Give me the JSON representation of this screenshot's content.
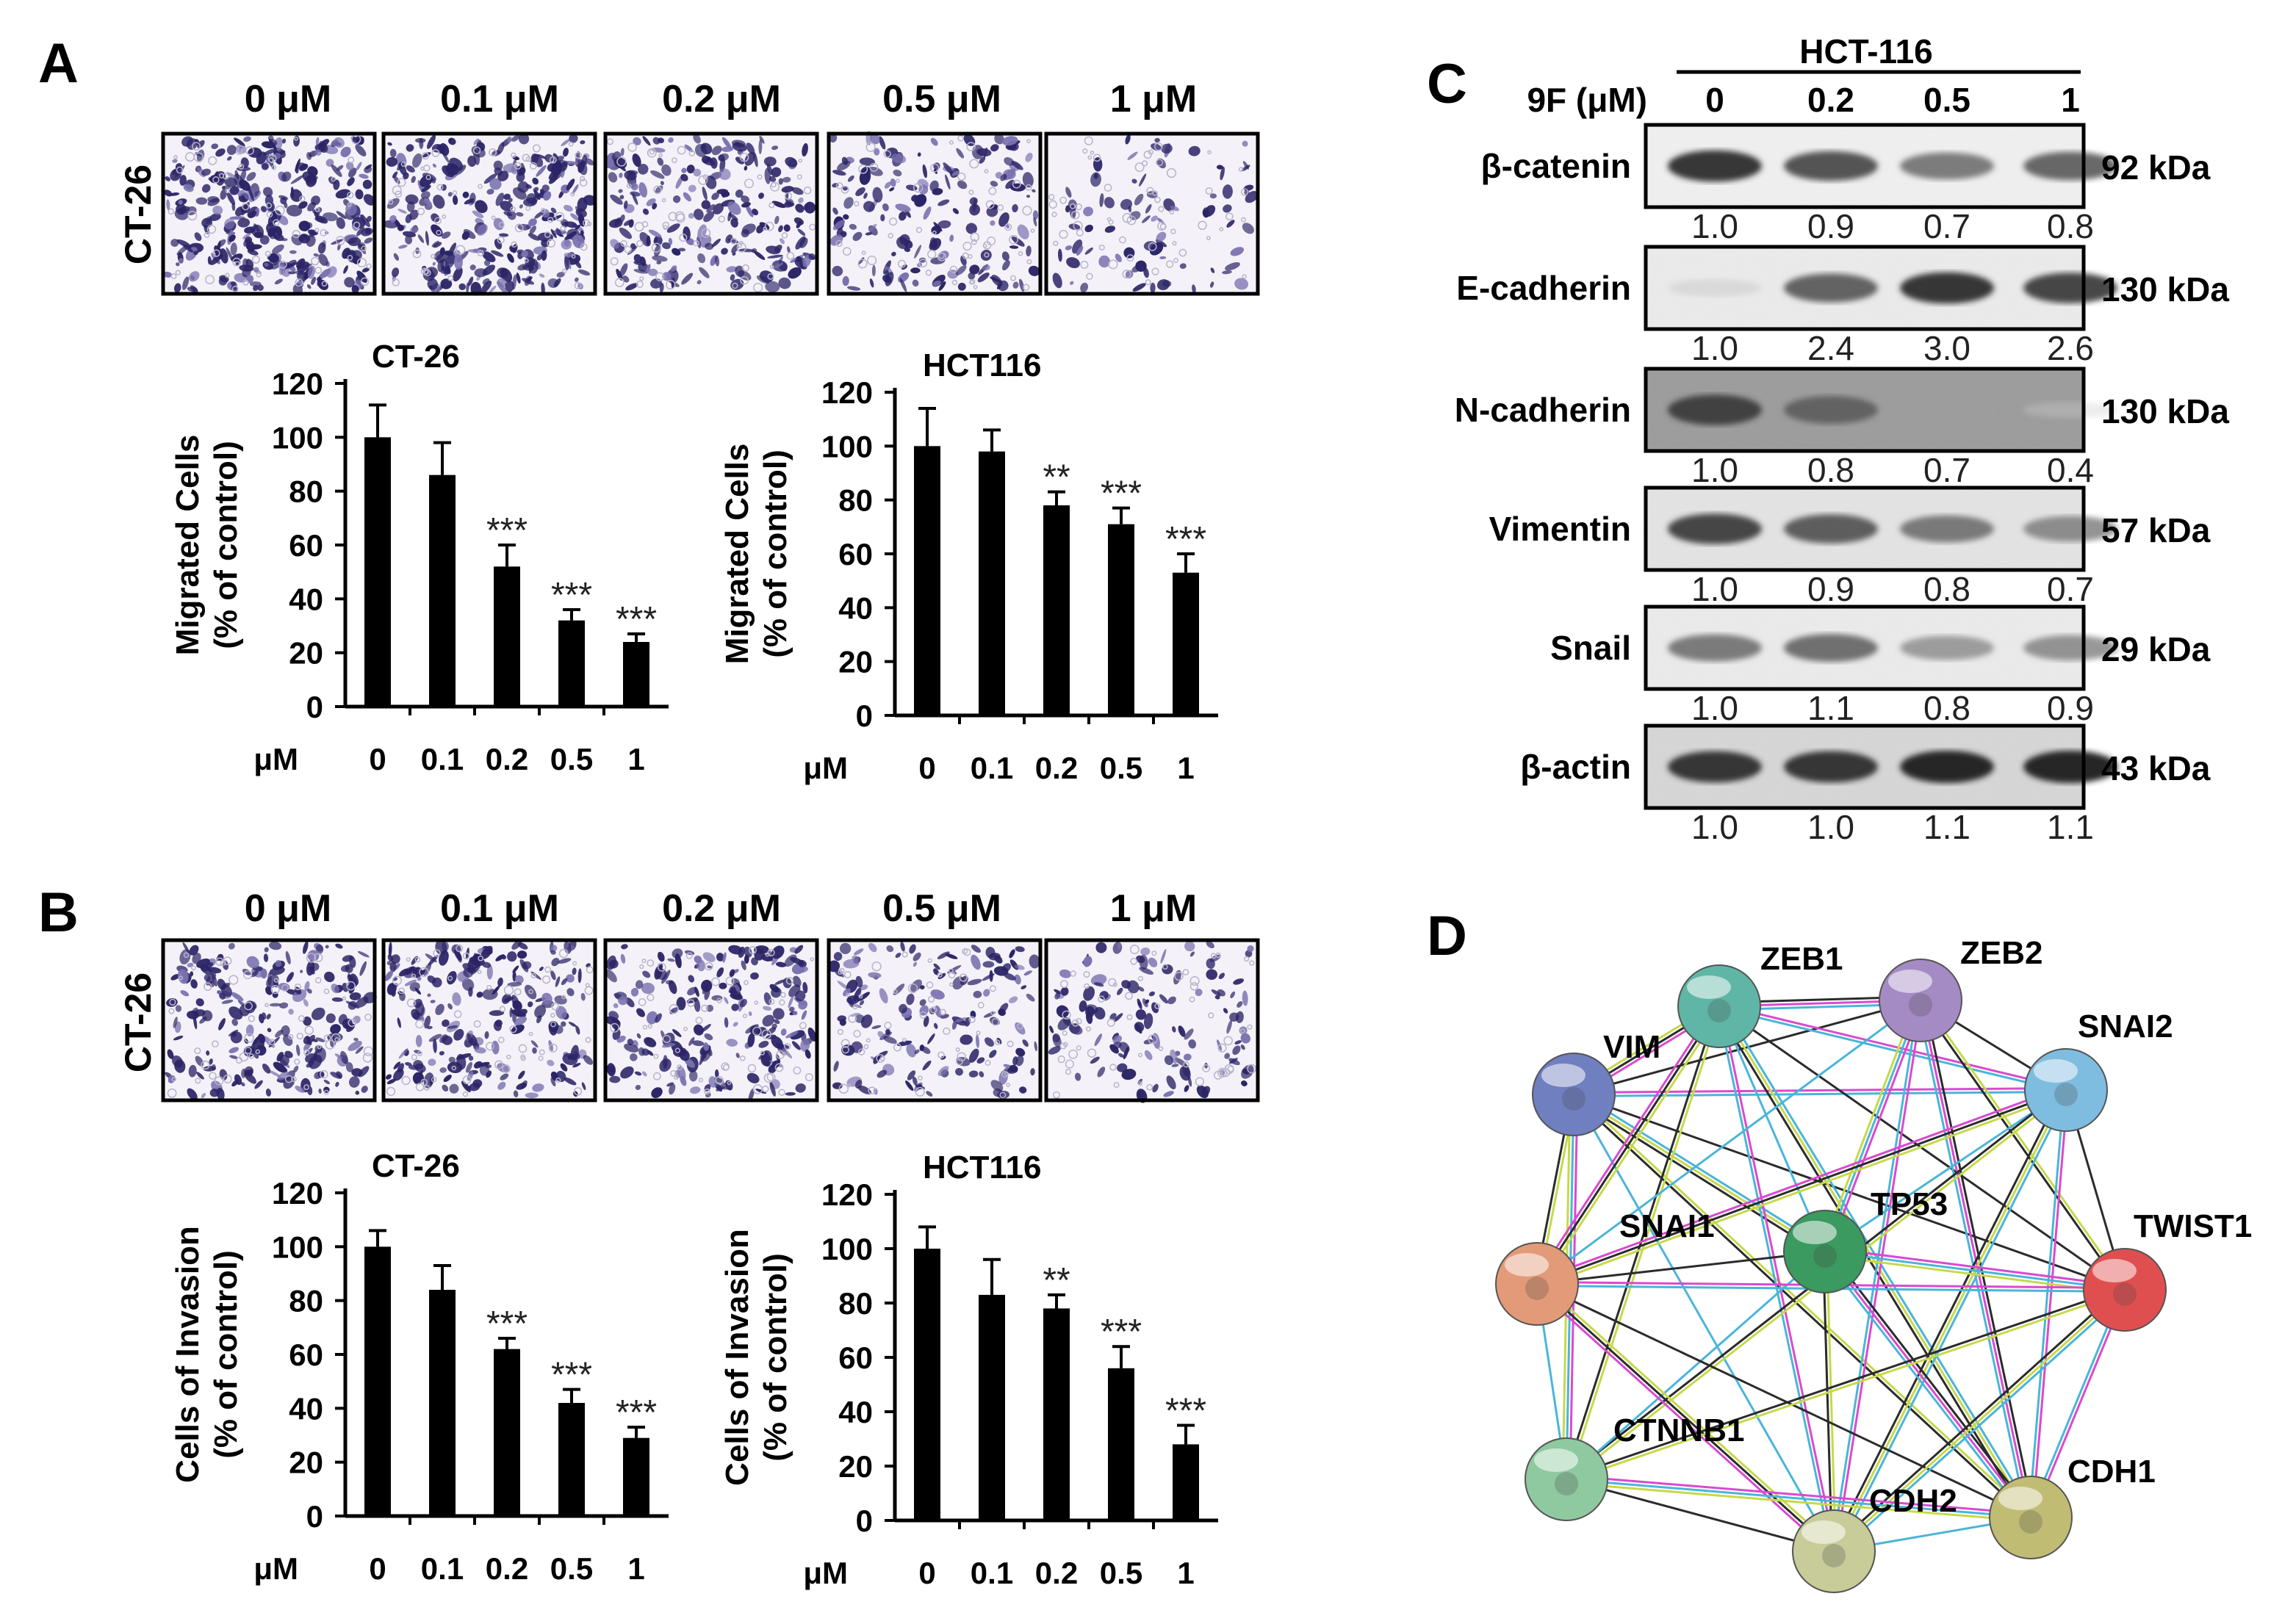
{
  "panels": {
    "A": {
      "letter": "A",
      "micro_conc": [
        "0 μM",
        "0.1 μM",
        "0.2 μM",
        "0.5 μM",
        "1 μM"
      ],
      "micro_density": [
        0.62,
        0.55,
        0.42,
        0.32,
        0.16
      ],
      "micro_row_label": "CT-26"
    },
    "B": {
      "letter": "B",
      "micro_conc": [
        "0 μM",
        "0.1 μM",
        "0.2 μM",
        "0.5 μM",
        "1 μM"
      ],
      "micro_density": [
        0.44,
        0.42,
        0.4,
        0.3,
        0.25
      ],
      "micro_row_label": "CT-26"
    },
    "C": {
      "letter": "C",
      "cell_line": "HCT-116",
      "treatment_label": "9F (μM)",
      "lanes": [
        "0",
        "0.2",
        "0.5",
        "1"
      ],
      "proteins": [
        {
          "name": "β-catenin",
          "kda": "92 kDa",
          "quant": [
            "1.0",
            "0.9",
            "0.7",
            "0.8"
          ],
          "intensity": [
            0.95,
            0.85,
            0.7,
            0.78
          ],
          "bg": "#f3f3f3"
        },
        {
          "name": "E-cadherin",
          "kda": "130 kDa",
          "quant": [
            "1.0",
            "2.4",
            "3.0",
            "2.6"
          ],
          "intensity": [
            0.15,
            0.8,
            0.95,
            0.9
          ],
          "bg": "#eeeeee"
        },
        {
          "name": "N-cadherin",
          "kda": "130 kDa",
          "quant": [
            "1.0",
            "0.8",
            "0.7",
            "0.4"
          ],
          "intensity": [
            0.9,
            0.75,
            0.35,
            0.08
          ],
          "bg": "#9a9a9a"
        },
        {
          "name": "Vimentin",
          "kda": "57 kDa",
          "quant": [
            "1.0",
            "0.9",
            "0.8",
            "0.7"
          ],
          "intensity": [
            0.9,
            0.82,
            0.7,
            0.62
          ],
          "bg": "#e6e6e6"
        },
        {
          "name": "Snail",
          "kda": "29 kDa",
          "quant": [
            "1.0",
            "1.1",
            "0.8",
            "0.9"
          ],
          "intensity": [
            0.7,
            0.75,
            0.55,
            0.6
          ],
          "bg": "#eeeeee"
        },
        {
          "name": "β-actin",
          "kda": "43 kDa",
          "quant": [
            "1.0",
            "1.0",
            "1.1",
            "1.1"
          ],
          "intensity": [
            0.95,
            0.95,
            1.0,
            1.0
          ],
          "bg": "#d8d8d8"
        }
      ]
    },
    "D": {
      "letter": "D",
      "nodes": [
        {
          "id": "ZEB1",
          "color": "#5fb6a6"
        },
        {
          "id": "ZEB2",
          "color": "#a48bc4"
        },
        {
          "id": "VIM",
          "color": "#6f7fc0"
        },
        {
          "id": "SNAI2",
          "color": "#7fbde0"
        },
        {
          "id": "TP53",
          "color": "#3a9a5f"
        },
        {
          "id": "SNAI1",
          "color": "#e29a78"
        },
        {
          "id": "TWIST1",
          "color": "#e04f4f"
        },
        {
          "id": "CTNNB1",
          "color": "#8fc9a0"
        },
        {
          "id": "CDH2",
          "color": "#c7cc98"
        },
        {
          "id": "CDH1",
          "color": "#c1bc74"
        }
      ],
      "edges": [
        [
          "VIM",
          "ZEB1"
        ],
        [
          "VIM",
          "ZEB2"
        ],
        [
          "VIM",
          "SNAI2"
        ],
        [
          "VIM",
          "TP53"
        ],
        [
          "VIM",
          "SNAI1"
        ],
        [
          "VIM",
          "TWIST1"
        ],
        [
          "VIM",
          "CTNNB1"
        ],
        [
          "VIM",
          "CDH2"
        ],
        [
          "VIM",
          "CDH1"
        ],
        [
          "ZEB1",
          "ZEB2"
        ],
        [
          "ZEB1",
          "SNAI2"
        ],
        [
          "ZEB1",
          "TP53"
        ],
        [
          "ZEB1",
          "SNAI1"
        ],
        [
          "ZEB1",
          "TWIST1"
        ],
        [
          "ZEB1",
          "CDH2"
        ],
        [
          "ZEB1",
          "CDH1"
        ],
        [
          "ZEB1",
          "CTNNB1"
        ],
        [
          "ZEB2",
          "SNAI2"
        ],
        [
          "ZEB2",
          "TP53"
        ],
        [
          "ZEB2",
          "SNAI1"
        ],
        [
          "ZEB2",
          "TWIST1"
        ],
        [
          "ZEB2",
          "CDH1"
        ],
        [
          "ZEB2",
          "CDH2"
        ],
        [
          "SNAI2",
          "TP53"
        ],
        [
          "SNAI2",
          "SNAI1"
        ],
        [
          "SNAI2",
          "TWIST1"
        ],
        [
          "SNAI2",
          "CDH1"
        ],
        [
          "SNAI2",
          "CDH2"
        ],
        [
          "SNAI2",
          "CTNNB1"
        ],
        [
          "TP53",
          "SNAI1"
        ],
        [
          "TP53",
          "TWIST1"
        ],
        [
          "TP53",
          "CTNNB1"
        ],
        [
          "TP53",
          "CDH2"
        ],
        [
          "TP53",
          "CDH1"
        ],
        [
          "SNAI1",
          "TWIST1"
        ],
        [
          "SNAI1",
          "CTNNB1"
        ],
        [
          "SNAI1",
          "CDH2"
        ],
        [
          "SNAI1",
          "CDH1"
        ],
        [
          "TWIST1",
          "CDH1"
        ],
        [
          "TWIST1",
          "CDH2"
        ],
        [
          "TWIST1",
          "CTNNB1"
        ],
        [
          "CTNNB1",
          "CDH2"
        ],
        [
          "CTNNB1",
          "CDH1"
        ],
        [
          "CDH2",
          "CDH1"
        ]
      ]
    }
  },
  "chart_data": [
    {
      "type": "bar",
      "panel": "A",
      "title": "CT-26",
      "ylabel": [
        "Migrated Cells",
        "(% of control)"
      ],
      "xlabel": "μM",
      "categories": [
        "0",
        "0.1",
        "0.2",
        "0.5",
        "1"
      ],
      "values": [
        100,
        86,
        52,
        32,
        24
      ],
      "errors": [
        12,
        12,
        8,
        4,
        3
      ],
      "significance": [
        "",
        "",
        "***",
        "***",
        "***"
      ],
      "ylim": [
        0,
        120
      ],
      "yticks": [
        0,
        20,
        40,
        60,
        80,
        100,
        120
      ]
    },
    {
      "type": "bar",
      "panel": "A",
      "title": "HCT116",
      "ylabel": [
        "Migrated Cells",
        "(% of control)"
      ],
      "xlabel": "μM",
      "categories": [
        "0",
        "0.1",
        "0.2",
        "0.5",
        "1"
      ],
      "values": [
        100,
        98,
        78,
        71,
        53
      ],
      "errors": [
        14,
        8,
        5,
        6,
        7
      ],
      "significance": [
        "",
        "",
        "**",
        "***",
        "***"
      ],
      "ylim": [
        0,
        120
      ],
      "yticks": [
        0,
        20,
        40,
        60,
        80,
        100,
        120
      ]
    },
    {
      "type": "bar",
      "panel": "B",
      "title": "CT-26",
      "ylabel": [
        "Cells of Invasion",
        "(% of control)"
      ],
      "xlabel": "μM",
      "categories": [
        "0",
        "0.1",
        "0.2",
        "0.5",
        "1"
      ],
      "values": [
        100,
        84,
        62,
        42,
        29
      ],
      "errors": [
        6,
        9,
        4,
        5,
        4
      ],
      "significance": [
        "",
        "",
        "***",
        "***",
        "***"
      ],
      "ylim": [
        0,
        120
      ],
      "yticks": [
        0,
        20,
        40,
        60,
        80,
        100,
        120
      ]
    },
    {
      "type": "bar",
      "panel": "B",
      "title": "HCT116",
      "ylabel": [
        "Cells of Invasion",
        "(% of control)"
      ],
      "xlabel": "μM",
      "categories": [
        "0",
        "0.1",
        "0.2",
        "0.5",
        "1"
      ],
      "values": [
        100,
        83,
        78,
        56,
        28
      ],
      "errors": [
        8,
        13,
        5,
        8,
        7
      ],
      "significance": [
        "",
        "",
        "**",
        "***",
        "***"
      ],
      "ylim": [
        0,
        120
      ],
      "yticks": [
        0,
        20,
        40,
        60,
        80,
        100,
        120
      ]
    }
  ]
}
